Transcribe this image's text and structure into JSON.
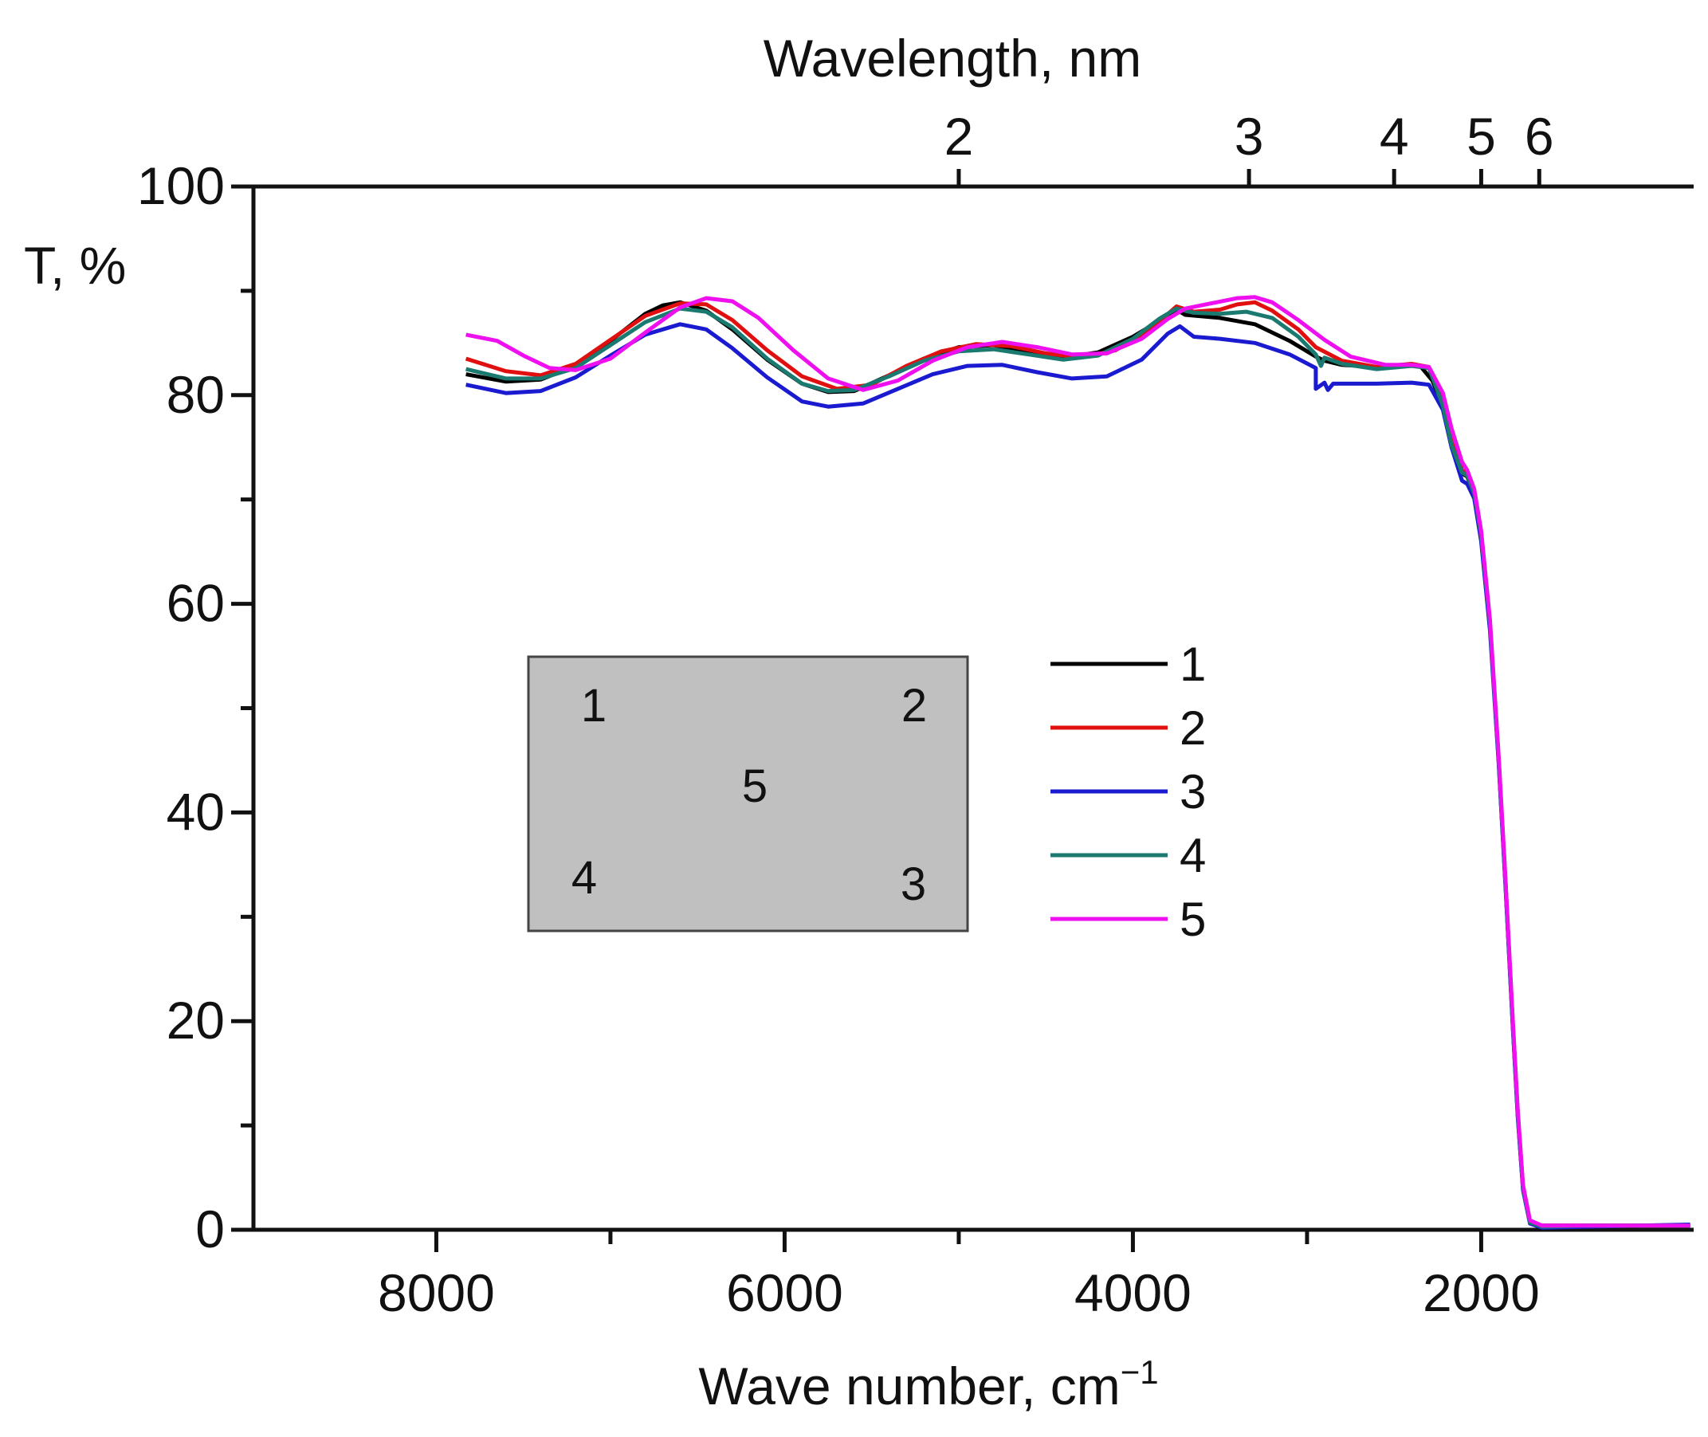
{
  "chart_data": {
    "type": "line",
    "title": "",
    "xlabel": "Wave number, cm",
    "xlabel_superscript": "−1",
    "ylabel": "T, %",
    "top_xlabel": "Wavelength, nm",
    "xlim": [
      9050,
      780
    ],
    "ylim": [
      0,
      100
    ],
    "x_ticks": [
      8000,
      6000,
      4000,
      2000
    ],
    "x_tick_labels": [
      "8000",
      "6000",
      "4000",
      "2000"
    ],
    "x_minor_ticks": [
      7000,
      5000,
      3000
    ],
    "y_ticks": [
      0,
      20,
      40,
      60,
      80,
      100
    ],
    "y_tick_labels": [
      "0",
      "20",
      "40",
      "60",
      "80",
      "100"
    ],
    "y_minor_ticks": [
      10,
      30,
      50,
      70,
      90
    ],
    "top_ticks_um": [
      2,
      3,
      4,
      5,
      6
    ],
    "top_tick_labels": [
      "2",
      "3",
      "4",
      "5",
      "6"
    ],
    "legend_position": "center-right",
    "series": [
      {
        "name": "1",
        "color": "#000000",
        "values": [
          [
            7830,
            82.0
          ],
          [
            7600,
            81.3
          ],
          [
            7400,
            81.5
          ],
          [
            7200,
            82.8
          ],
          [
            7000,
            85.2
          ],
          [
            6800,
            87.8
          ],
          [
            6700,
            88.6
          ],
          [
            6600,
            88.9
          ],
          [
            6450,
            88.1
          ],
          [
            6300,
            86.3
          ],
          [
            6100,
            83.4
          ],
          [
            5900,
            81.1
          ],
          [
            5750,
            80.3
          ],
          [
            5600,
            80.4
          ],
          [
            5400,
            81.9
          ],
          [
            5200,
            83.5
          ],
          [
            5000,
            84.6
          ],
          [
            4800,
            84.8
          ],
          [
            4600,
            84.2
          ],
          [
            4400,
            83.6
          ],
          [
            4200,
            84.1
          ],
          [
            4000,
            85.6
          ],
          [
            3850,
            87.1
          ],
          [
            3750,
            88.2
          ],
          [
            3700,
            87.7
          ],
          [
            3500,
            87.4
          ],
          [
            3300,
            86.8
          ],
          [
            3100,
            85.2
          ],
          [
            2950,
            83.7
          ],
          [
            2900,
            83.3
          ],
          [
            2800,
            82.9
          ],
          [
            2600,
            82.7
          ],
          [
            2450,
            82.9
          ],
          [
            2350,
            82.8
          ],
          [
            2280,
            81.4
          ],
          [
            2220,
            78.8
          ],
          [
            2170,
            75.0
          ],
          [
            2110,
            72.5
          ],
          [
            2080,
            72.2
          ],
          [
            2040,
            70.5
          ],
          [
            2000,
            66.5
          ],
          [
            1950,
            58.0
          ],
          [
            1900,
            45.0
          ],
          [
            1860,
            33.0
          ],
          [
            1820,
            20.0
          ],
          [
            1790,
            11.0
          ],
          [
            1760,
            4.0
          ],
          [
            1720,
            0.8
          ],
          [
            1650,
            0.4
          ],
          [
            1400,
            0.4
          ],
          [
            1100,
            0.4
          ],
          [
            800,
            0.4
          ]
        ]
      },
      {
        "name": "2",
        "color": "#e01010",
        "values": [
          [
            7830,
            83.5
          ],
          [
            7600,
            82.3
          ],
          [
            7400,
            81.9
          ],
          [
            7200,
            83.0
          ],
          [
            7000,
            85.3
          ],
          [
            6800,
            87.6
          ],
          [
            6600,
            88.8
          ],
          [
            6450,
            88.7
          ],
          [
            6300,
            87.2
          ],
          [
            6100,
            84.3
          ],
          [
            5900,
            81.8
          ],
          [
            5700,
            80.6
          ],
          [
            5500,
            81.0
          ],
          [
            5300,
            82.8
          ],
          [
            5100,
            84.2
          ],
          [
            4900,
            84.9
          ],
          [
            4700,
            84.7
          ],
          [
            4500,
            84.0
          ],
          [
            4300,
            83.6
          ],
          [
            4100,
            84.3
          ],
          [
            3900,
            86.3
          ],
          [
            3750,
            88.5
          ],
          [
            3650,
            88.0
          ],
          [
            3500,
            88.2
          ],
          [
            3400,
            88.7
          ],
          [
            3300,
            88.9
          ],
          [
            3200,
            88.1
          ],
          [
            3050,
            86.3
          ],
          [
            2950,
            84.6
          ],
          [
            2800,
            83.3
          ],
          [
            2600,
            82.7
          ],
          [
            2400,
            83.0
          ],
          [
            2300,
            82.7
          ],
          [
            2220,
            79.3
          ],
          [
            2170,
            75.5
          ],
          [
            2110,
            72.8
          ],
          [
            2080,
            72.4
          ],
          [
            2040,
            70.8
          ],
          [
            2000,
            66.8
          ],
          [
            1950,
            58.2
          ],
          [
            1900,
            45.2
          ],
          [
            1860,
            33.2
          ],
          [
            1820,
            20.2
          ],
          [
            1790,
            11.2
          ],
          [
            1760,
            4.1
          ],
          [
            1720,
            0.8
          ],
          [
            1650,
            0.4
          ],
          [
            1400,
            0.4
          ],
          [
            1100,
            0.4
          ],
          [
            800,
            0.4
          ]
        ]
      },
      {
        "name": "3",
        "color": "#1a1ad0",
        "values": [
          [
            7830,
            81.0
          ],
          [
            7600,
            80.2
          ],
          [
            7400,
            80.4
          ],
          [
            7200,
            81.7
          ],
          [
            7000,
            83.8
          ],
          [
            6800,
            85.8
          ],
          [
            6600,
            86.8
          ],
          [
            6450,
            86.3
          ],
          [
            6300,
            84.5
          ],
          [
            6100,
            81.7
          ],
          [
            5900,
            79.4
          ],
          [
            5750,
            78.9
          ],
          [
            5550,
            79.2
          ],
          [
            5350,
            80.6
          ],
          [
            5150,
            82.0
          ],
          [
            4950,
            82.8
          ],
          [
            4750,
            82.9
          ],
          [
            4550,
            82.2
          ],
          [
            4350,
            81.6
          ],
          [
            4150,
            81.8
          ],
          [
            3950,
            83.4
          ],
          [
            3800,
            85.9
          ],
          [
            3730,
            86.6
          ],
          [
            3650,
            85.6
          ],
          [
            3500,
            85.4
          ],
          [
            3300,
            85.0
          ],
          [
            3100,
            83.9
          ],
          [
            2950,
            82.6
          ],
          [
            2950,
            80.6
          ],
          [
            2900,
            81.2
          ],
          [
            2880,
            80.5
          ],
          [
            2850,
            81.1
          ],
          [
            2750,
            81.1
          ],
          [
            2600,
            81.1
          ],
          [
            2400,
            81.2
          ],
          [
            2300,
            81.0
          ],
          [
            2220,
            78.6
          ],
          [
            2170,
            75.0
          ],
          [
            2110,
            71.8
          ],
          [
            2080,
            71.5
          ],
          [
            2040,
            70.1
          ],
          [
            2000,
            66.0
          ],
          [
            1950,
            57.5
          ],
          [
            1900,
            44.8
          ],
          [
            1860,
            32.8
          ],
          [
            1820,
            19.8
          ],
          [
            1790,
            10.8
          ],
          [
            1760,
            3.8
          ],
          [
            1720,
            0.6
          ],
          [
            1650,
            0.2
          ],
          [
            1400,
            0.3
          ],
          [
            1100,
            0.4
          ],
          [
            800,
            0.5
          ]
        ]
      },
      {
        "name": "4",
        "color": "#1b7a70",
        "values": [
          [
            7830,
            82.5
          ],
          [
            7600,
            81.6
          ],
          [
            7400,
            81.6
          ],
          [
            7200,
            82.6
          ],
          [
            7000,
            84.8
          ],
          [
            6800,
            87.0
          ],
          [
            6600,
            88.3
          ],
          [
            6450,
            88.0
          ],
          [
            6300,
            86.5
          ],
          [
            6100,
            83.5
          ],
          [
            5900,
            81.1
          ],
          [
            5750,
            80.4
          ],
          [
            5600,
            80.5
          ],
          [
            5400,
            81.8
          ],
          [
            5200,
            83.3
          ],
          [
            5000,
            84.2
          ],
          [
            4800,
            84.4
          ],
          [
            4600,
            83.9
          ],
          [
            4400,
            83.4
          ],
          [
            4200,
            83.8
          ],
          [
            4000,
            85.4
          ],
          [
            3850,
            87.3
          ],
          [
            3750,
            88.3
          ],
          [
            3650,
            87.9
          ],
          [
            3500,
            87.8
          ],
          [
            3350,
            88.0
          ],
          [
            3200,
            87.4
          ],
          [
            3050,
            85.6
          ],
          [
            2950,
            83.9
          ],
          [
            2920,
            82.8
          ],
          [
            2900,
            83.6
          ],
          [
            2800,
            83.0
          ],
          [
            2600,
            82.5
          ],
          [
            2400,
            82.8
          ],
          [
            2300,
            82.6
          ],
          [
            2220,
            79.0
          ],
          [
            2170,
            75.2
          ],
          [
            2110,
            72.6
          ],
          [
            2080,
            72.3
          ],
          [
            2040,
            70.6
          ],
          [
            2000,
            66.6
          ],
          [
            1950,
            58.1
          ],
          [
            1900,
            45.1
          ],
          [
            1860,
            33.1
          ],
          [
            1820,
            20.1
          ],
          [
            1790,
            11.1
          ],
          [
            1760,
            4.0
          ],
          [
            1720,
            0.7
          ],
          [
            1650,
            0.3
          ],
          [
            1400,
            0.4
          ],
          [
            1100,
            0.4
          ],
          [
            800,
            0.4
          ]
        ]
      },
      {
        "name": "5",
        "color": "#ee10ee",
        "values": [
          [
            7830,
            85.8
          ],
          [
            7650,
            85.2
          ],
          [
            7500,
            83.8
          ],
          [
            7350,
            82.6
          ],
          [
            7200,
            82.4
          ],
          [
            7000,
            83.5
          ],
          [
            6800,
            86.0
          ],
          [
            6600,
            88.4
          ],
          [
            6450,
            89.3
          ],
          [
            6300,
            89.0
          ],
          [
            6150,
            87.4
          ],
          [
            5950,
            84.3
          ],
          [
            5750,
            81.6
          ],
          [
            5550,
            80.5
          ],
          [
            5350,
            81.4
          ],
          [
            5150,
            83.3
          ],
          [
            4950,
            84.6
          ],
          [
            4750,
            85.1
          ],
          [
            4550,
            84.6
          ],
          [
            4350,
            83.9
          ],
          [
            4150,
            84.0
          ],
          [
            3950,
            85.4
          ],
          [
            3800,
            87.3
          ],
          [
            3700,
            88.3
          ],
          [
            3550,
            88.8
          ],
          [
            3400,
            89.3
          ],
          [
            3300,
            89.4
          ],
          [
            3200,
            88.9
          ],
          [
            3050,
            87.2
          ],
          [
            2900,
            85.3
          ],
          [
            2750,
            83.7
          ],
          [
            2550,
            82.9
          ],
          [
            2400,
            82.9
          ],
          [
            2300,
            82.7
          ],
          [
            2220,
            80.2
          ],
          [
            2170,
            76.8
          ],
          [
            2110,
            73.6
          ],
          [
            2080,
            72.8
          ],
          [
            2040,
            71.0
          ],
          [
            2000,
            67.0
          ],
          [
            1950,
            58.5
          ],
          [
            1900,
            45.5
          ],
          [
            1860,
            33.5
          ],
          [
            1820,
            20.5
          ],
          [
            1790,
            11.5
          ],
          [
            1760,
            4.3
          ],
          [
            1720,
            0.9
          ],
          [
            1650,
            0.4
          ],
          [
            1400,
            0.4
          ],
          [
            1100,
            0.4
          ],
          [
            800,
            0.4
          ]
        ]
      }
    ],
    "inset": {
      "description_labels": [
        "1",
        "2",
        "5",
        "4",
        "3"
      ],
      "color": "#c0c0c0"
    }
  }
}
